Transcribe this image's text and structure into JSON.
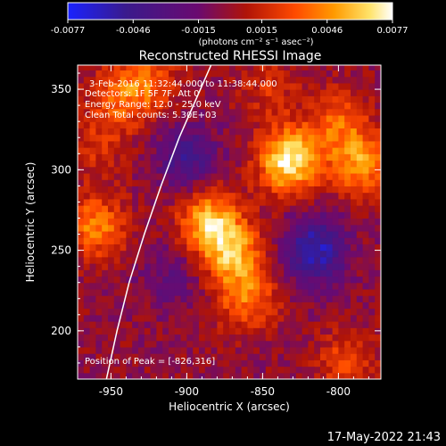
{
  "chart_data": {
    "type": "heatmap",
    "title": "Reconstructed RHESSI Image",
    "xlabel": "Heliocentric X (arcsec)",
    "ylabel": "Heliocentric Y (arcsec)",
    "xlim": [
      -972,
      -772
    ],
    "ylim": [
      170,
      365
    ],
    "x_ticks": [
      -950,
      -900,
      -850,
      -800
    ],
    "y_ticks": [
      200,
      250,
      300,
      350
    ],
    "colorbar": {
      "ticks": [
        "-0.0077",
        "-0.0046",
        "-0.0015",
        "0.0015",
        "0.0046",
        "0.0077"
      ],
      "units": "(photons cm⁻² s⁻¹ asec⁻²)",
      "range": [
        -0.0077,
        0.0077
      ],
      "colors": [
        "#1a22ff",
        "#3a1a8c",
        "#6a0a70",
        "#b01408",
        "#ff4a00",
        "#ff9a00",
        "#ffe36a",
        "#ffffff"
      ]
    },
    "annotations": {
      "time": "3-Feb-2016 11:32:44.000 to 11:38:44.000",
      "detectors": "Detectors: 1F 5F 7F, Att 0",
      "energy": "Energy Range: 12.0 - 25.0 keV",
      "clean": "Clean    Total counts: 5.30E+03",
      "peak": "Position of Peak = [-826,316]"
    },
    "sources": [
      {
        "x": -833,
        "y": 306,
        "value": 0.0077
      },
      {
        "x": -885,
        "y": 268,
        "value": 0.006
      },
      {
        "x": -870,
        "y": 248,
        "value": 0.0052
      },
      {
        "x": -860,
        "y": 220,
        "value": 0.004
      },
      {
        "x": -960,
        "y": 265,
        "value": 0.0045
      },
      {
        "x": -785,
        "y": 304,
        "value": 0.005
      },
      {
        "x": -800,
        "y": 330,
        "value": 0.0035
      },
      {
        "x": -945,
        "y": 345,
        "value": 0.0032
      },
      {
        "x": -925,
        "y": 355,
        "value": 0.0035
      },
      {
        "x": -845,
        "y": 350,
        "value": 0.002
      },
      {
        "x": -795,
        "y": 180,
        "value": 0.003
      },
      {
        "x": -960,
        "y": 315,
        "value": 0.002
      }
    ],
    "negative_regions": [
      {
        "x": -900,
        "y": 308,
        "value": -0.004
      },
      {
        "x": -815,
        "y": 250,
        "value": -0.006
      },
      {
        "x": -910,
        "y": 235,
        "value": -0.002
      }
    ],
    "limb": [
      [
        -953,
        170
      ],
      [
        -946,
        200
      ],
      [
        -938,
        230
      ],
      [
        -928,
        260
      ],
      [
        -917,
        290
      ],
      [
        -905,
        320
      ],
      [
        -891,
        350
      ],
      [
        -884,
        365
      ]
    ]
  },
  "footer": {
    "timestamp": "17-May-2022 21:43"
  }
}
